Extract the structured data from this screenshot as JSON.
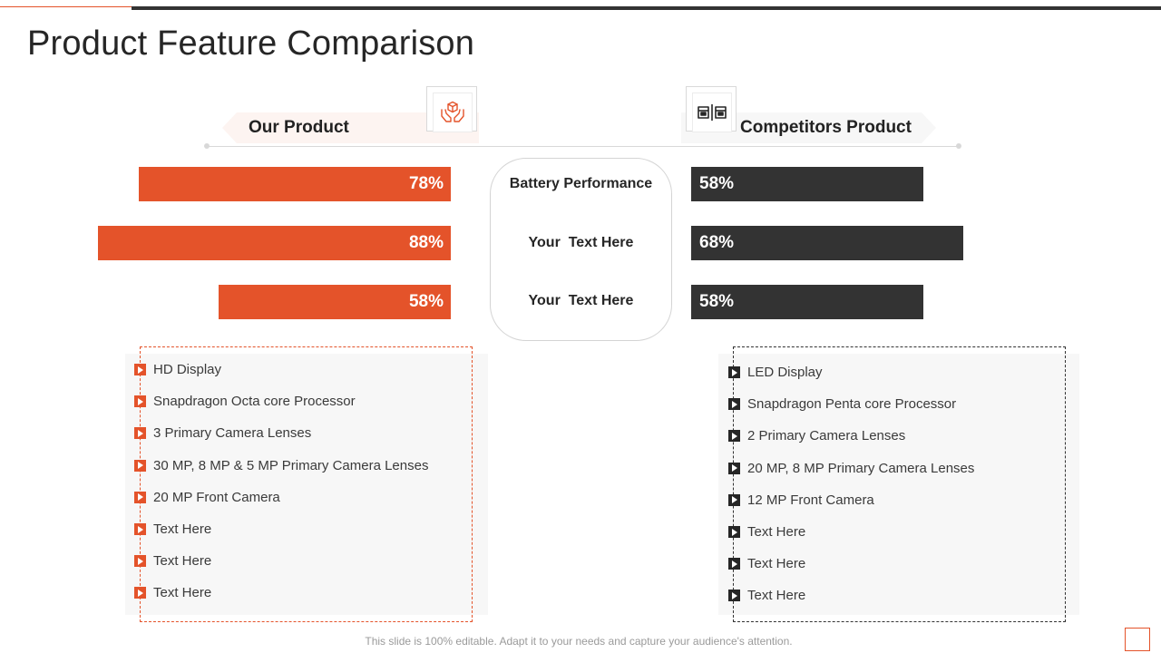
{
  "slide": {
    "title": "Product Feature Comparison",
    "footer": "This slide is 100% editable. Adapt it to your needs and capture your audience's attention."
  },
  "colors": {
    "accent": "#e4532a",
    "dark": "#333333",
    "panel": "#f7f7f7"
  },
  "headers": {
    "left": {
      "label": "Our Product",
      "icon": "hands-box-icon"
    },
    "right": {
      "label": "Competitors Product",
      "icon": "product-compare-icon"
    }
  },
  "comparison": {
    "rows": [
      {
        "label": "Battery Performance",
        "ours": "78%",
        "ours_value": 78,
        "theirs": "58%",
        "theirs_value": 58
      },
      {
        "label": "Your  Text Here",
        "ours": "88%",
        "ours_value": 88,
        "theirs": "68%",
        "theirs_value": 68
      },
      {
        "label": "Your  Text Here",
        "ours": "58%",
        "ours_value": 58,
        "theirs": "58%",
        "theirs_value": 58
      }
    ]
  },
  "features": {
    "ours": [
      "HD Display",
      "Snapdragon Octa core Processor",
      "3 Primary Camera Lenses",
      "30 MP, 8 MP & 5 MP Primary Camera Lenses",
      "20 MP Front Camera",
      "Text Here",
      "Text Here",
      "Text Here"
    ],
    "theirs": [
      "LED Display",
      "Snapdragon Penta core Processor",
      "2 Primary Camera Lenses",
      "20 MP, 8 MP Primary Camera Lenses",
      "12 MP Front Camera",
      "Text Here",
      "Text Here",
      "Text Here"
    ]
  }
}
